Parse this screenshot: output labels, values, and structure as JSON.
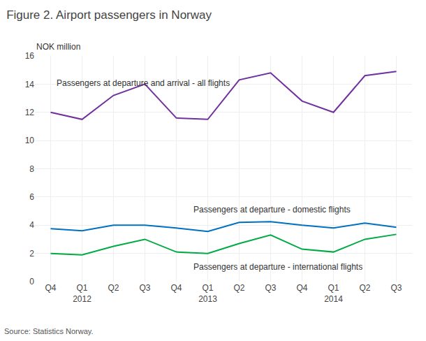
{
  "chart_data": {
    "type": "line",
    "title": "Figure 2. Airport passengers in Norway",
    "ylabel": "NOK million",
    "source": "Source: Statistics Norway.",
    "categories": [
      "Q4",
      "Q1\n2012",
      "Q2",
      "Q3",
      "Q4",
      "Q1\n2013",
      "Q2",
      "Q3",
      "Q4",
      "Q1\n2014",
      "Q2",
      "Q3"
    ],
    "series": [
      {
        "color": "#7030A0",
        "values": [
          12.0,
          11.5,
          13.2,
          14.0,
          11.6,
          11.5,
          14.3,
          14.8,
          12.8,
          12.0,
          14.6,
          14.9
        ]
      },
      {
        "color": "#0070C0",
        "values": [
          3.75,
          3.6,
          4.0,
          4.0,
          3.8,
          3.55,
          4.2,
          4.25,
          4.0,
          3.8,
          4.15,
          3.85
        ]
      },
      {
        "color": "#00AA44",
        "values": [
          2.0,
          1.9,
          2.5,
          3.0,
          2.1,
          2.0,
          2.7,
          3.3,
          2.3,
          2.1,
          3.0,
          3.35
        ]
      }
    ],
    "annotations": [
      {
        "text": "Passengers at departure and arrival - all flights",
        "x": 0.15,
        "y": 13.6
      },
      {
        "text": "Passengers at departure - domestic flights",
        "x": 4.5,
        "y": 4.65
      },
      {
        "text": "Passengers at departure - international flights",
        "x": 4.5,
        "y": 1.5
      }
    ],
    "ylim": [
      0,
      16
    ],
    "yticks": [
      0,
      2,
      4,
      6,
      8,
      10,
      12,
      14,
      16
    ],
    "grid": true
  }
}
